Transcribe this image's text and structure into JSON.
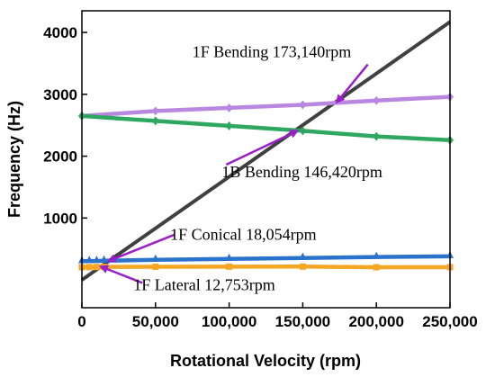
{
  "chart_data": {
    "type": "line",
    "xlabel": "Rotational Velocity (rpm)",
    "ylabel": "Frequency (Hz)",
    "xlim": [
      0,
      250000
    ],
    "ylim": [
      -450,
      4350
    ],
    "x_ticks": [
      0,
      50000,
      100000,
      150000,
      200000,
      250000
    ],
    "x_tick_labels": [
      "0",
      "50,000",
      "100,000",
      "150,000",
      "200,000",
      "250,000"
    ],
    "y_ticks": [
      1000,
      2000,
      3000,
      4000
    ],
    "y_tick_labels": [
      "1000",
      "2000",
      "3000",
      "4000"
    ],
    "grid": false,
    "series": [
      {
        "key": "excitation",
        "color": "#404040",
        "marker": "none",
        "x": [
          0,
          250000
        ],
        "y": [
          0,
          4170
        ]
      },
      {
        "key": "1f-bending",
        "color": "#b987e0",
        "marker": "diamond",
        "x": [
          0,
          50000,
          100000,
          150000,
          200000,
          250000
        ],
        "y": [
          2650,
          2730,
          2780,
          2830,
          2900,
          2960
        ]
      },
      {
        "key": "1b-bending",
        "color": "#2ea860",
        "marker": "diamond",
        "x": [
          0,
          50000,
          100000,
          150000,
          200000,
          250000
        ],
        "y": [
          2650,
          2570,
          2490,
          2410,
          2320,
          2260
        ]
      },
      {
        "key": "1f-conical",
        "color": "#2a72cc",
        "marker": "triangle",
        "x": [
          0,
          5000,
          10000,
          15000,
          50000,
          100000,
          150000,
          200000,
          250000
        ],
        "y": [
          300,
          305,
          305,
          310,
          325,
          340,
          355,
          370,
          380
        ]
      },
      {
        "key": "1f-lateral",
        "color": "#f5a623",
        "marker": "square",
        "x": [
          0,
          5000,
          10000,
          15000,
          50000,
          100000,
          150000,
          200000,
          250000
        ],
        "y": [
          205,
          207,
          208,
          210,
          212,
          214,
          215,
          205,
          205
        ]
      }
    ],
    "annotations": [
      {
        "text": "1F Bending 173,140rpm",
        "point": [
          173140,
          2870
        ],
        "label_anchor": [
          75000,
          3600
        ]
      },
      {
        "text": "1B Bending 146,420rpm",
        "point": [
          146420,
          2410
        ],
        "label_anchor": [
          95000,
          1660
        ]
      },
      {
        "text": "1F Conical 18,054rpm",
        "point": [
          18054,
          305
        ],
        "label_anchor": [
          60000,
          645
        ]
      },
      {
        "text": "1F Lateral 12,753rpm",
        "point": [
          12753,
          215
        ],
        "label_anchor": [
          35000,
          -165
        ]
      }
    ],
    "arrow_color": "#9b1fc9"
  }
}
